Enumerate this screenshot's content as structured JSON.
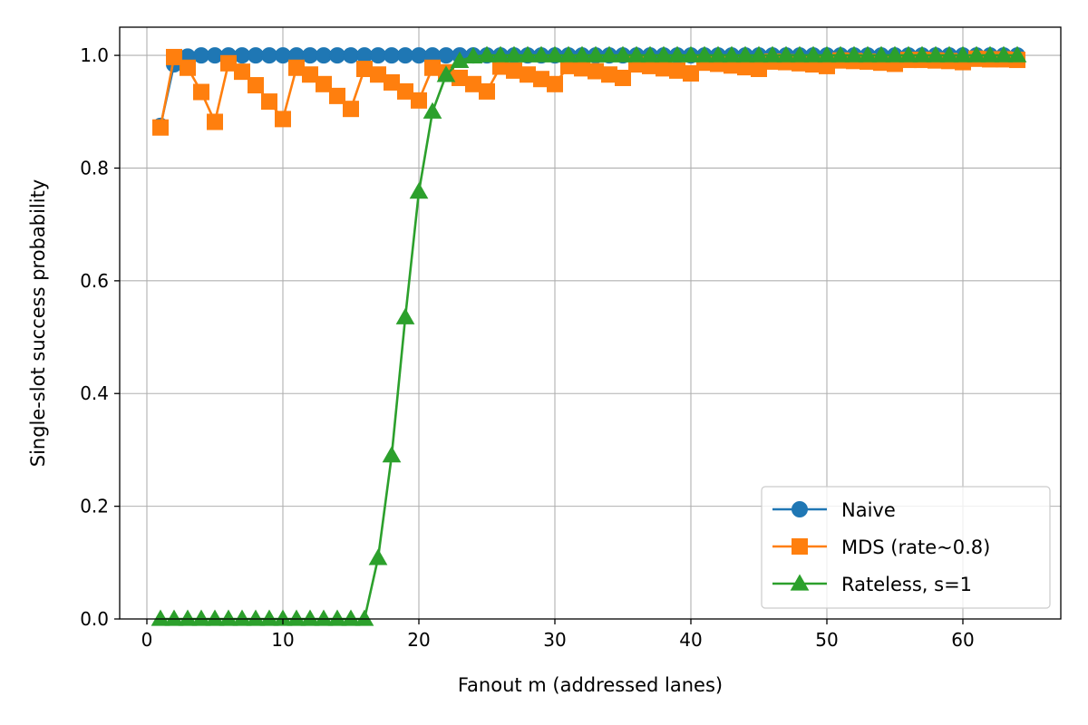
{
  "chart_data": {
    "type": "line",
    "xlabel": "Fanout m (addressed lanes)",
    "ylabel": "Single-slot success probability",
    "xlim": [
      -2,
      67.2
    ],
    "ylim": [
      0,
      1.05
    ],
    "xticks": [
      0,
      10,
      20,
      30,
      40,
      50,
      60
    ],
    "yticks": [
      0.0,
      0.2,
      0.4,
      0.6,
      0.8,
      1.0
    ],
    "xtick_labels": [
      "0",
      "10",
      "20",
      "30",
      "40",
      "50",
      "60"
    ],
    "ytick_labels": [
      "0.0",
      "0.2",
      "0.4",
      "0.6",
      "0.8",
      "1.0"
    ],
    "grid": true,
    "legend_position": "lower-right",
    "series": [
      {
        "name": "Naive",
        "color": "#1f77b4",
        "marker": "circle",
        "x": [
          1,
          2,
          3,
          4,
          5,
          6,
          7,
          8,
          9,
          10,
          11,
          12,
          13,
          14,
          15,
          16,
          17,
          18,
          19,
          20,
          21,
          22,
          23,
          24,
          25,
          26,
          27,
          28,
          29,
          30,
          31,
          32,
          33,
          34,
          35,
          36,
          37,
          38,
          39,
          40,
          41,
          42,
          43,
          44,
          45,
          46,
          47,
          48,
          49,
          50,
          51,
          52,
          53,
          54,
          55,
          56,
          57,
          58,
          59,
          60,
          61,
          62,
          63,
          64
        ],
        "y": [
          0.875,
          0.984,
          0.998,
          1.0,
          1.0,
          1.0,
          1.0,
          1.0,
          1.0,
          1.0,
          1.0,
          1.0,
          1.0,
          1.0,
          1.0,
          1.0,
          1.0,
          1.0,
          1.0,
          1.0,
          1.0,
          1.0,
          1.0,
          1.0,
          1.0,
          1.0,
          1.0,
          1.0,
          1.0,
          1.0,
          1.0,
          1.0,
          1.0,
          1.0,
          1.0,
          1.0,
          1.0,
          1.0,
          1.0,
          1.0,
          1.0,
          1.0,
          1.0,
          1.0,
          1.0,
          1.0,
          1.0,
          1.0,
          1.0,
          1.0,
          1.0,
          1.0,
          1.0,
          1.0,
          1.0,
          1.0,
          1.0,
          1.0,
          1.0,
          1.0,
          1.0,
          1.0,
          1.0,
          1.0
        ]
      },
      {
        "name": "MDS (rate~0.8)",
        "color": "#ff7f0e",
        "marker": "square",
        "x": [
          1,
          2,
          3,
          4,
          5,
          6,
          7,
          8,
          9,
          10,
          11,
          12,
          13,
          14,
          15,
          16,
          17,
          18,
          19,
          20,
          21,
          22,
          23,
          24,
          25,
          26,
          27,
          28,
          29,
          30,
          31,
          32,
          33,
          34,
          35,
          36,
          37,
          38,
          39,
          40,
          41,
          42,
          43,
          44,
          45,
          46,
          47,
          48,
          49,
          50,
          51,
          52,
          53,
          54,
          55,
          56,
          57,
          58,
          59,
          60,
          61,
          62,
          63,
          64
        ],
        "y": [
          0.872,
          0.997,
          0.978,
          0.935,
          0.882,
          0.986,
          0.971,
          0.947,
          0.918,
          0.887,
          0.978,
          0.966,
          0.949,
          0.928,
          0.905,
          0.976,
          0.966,
          0.952,
          0.936,
          0.92,
          0.978,
          0.97,
          0.96,
          0.949,
          0.936,
          0.98,
          0.973,
          0.966,
          0.958,
          0.949,
          0.981,
          0.977,
          0.972,
          0.966,
          0.96,
          0.984,
          0.981,
          0.977,
          0.973,
          0.968,
          0.987,
          0.985,
          0.982,
          0.979,
          0.976,
          0.989,
          0.988,
          0.986,
          0.984,
          0.981,
          0.991,
          0.99,
          0.989,
          0.987,
          0.985,
          0.992,
          0.992,
          0.991,
          0.99,
          0.988,
          0.994,
          0.993,
          0.993,
          0.992
        ]
      },
      {
        "name": "Rateless, s=1",
        "color": "#2ca02c",
        "marker": "triangle",
        "x": [
          1,
          2,
          3,
          4,
          5,
          6,
          7,
          8,
          9,
          10,
          11,
          12,
          13,
          14,
          15,
          16,
          17,
          18,
          19,
          20,
          21,
          22,
          23,
          24,
          25,
          26,
          27,
          28,
          29,
          30,
          31,
          32,
          33,
          34,
          35,
          36,
          37,
          38,
          39,
          40,
          41,
          42,
          43,
          44,
          45,
          46,
          47,
          48,
          49,
          50,
          51,
          52,
          53,
          54,
          55,
          56,
          57,
          58,
          59,
          60,
          61,
          62,
          63,
          64
        ],
        "y": [
          0,
          0,
          0,
          0,
          0,
          0,
          0,
          0,
          0,
          0,
          0,
          0,
          0,
          0,
          0,
          0,
          0.108,
          0.29,
          0.535,
          0.758,
          0.9,
          0.965,
          0.99,
          0.998,
          1.0,
          1.0,
          1.0,
          1.0,
          1.0,
          1.0,
          1.0,
          1.0,
          1.0,
          1.0,
          1.0,
          1.0,
          1.0,
          1.0,
          1.0,
          1.0,
          1.0,
          1.0,
          1.0,
          1.0,
          1.0,
          1.0,
          1.0,
          1.0,
          1.0,
          1.0,
          1.0,
          1.0,
          1.0,
          1.0,
          1.0,
          1.0,
          1.0,
          1.0,
          1.0,
          1.0,
          1.0,
          1.0,
          1.0,
          1.0
        ]
      }
    ]
  }
}
